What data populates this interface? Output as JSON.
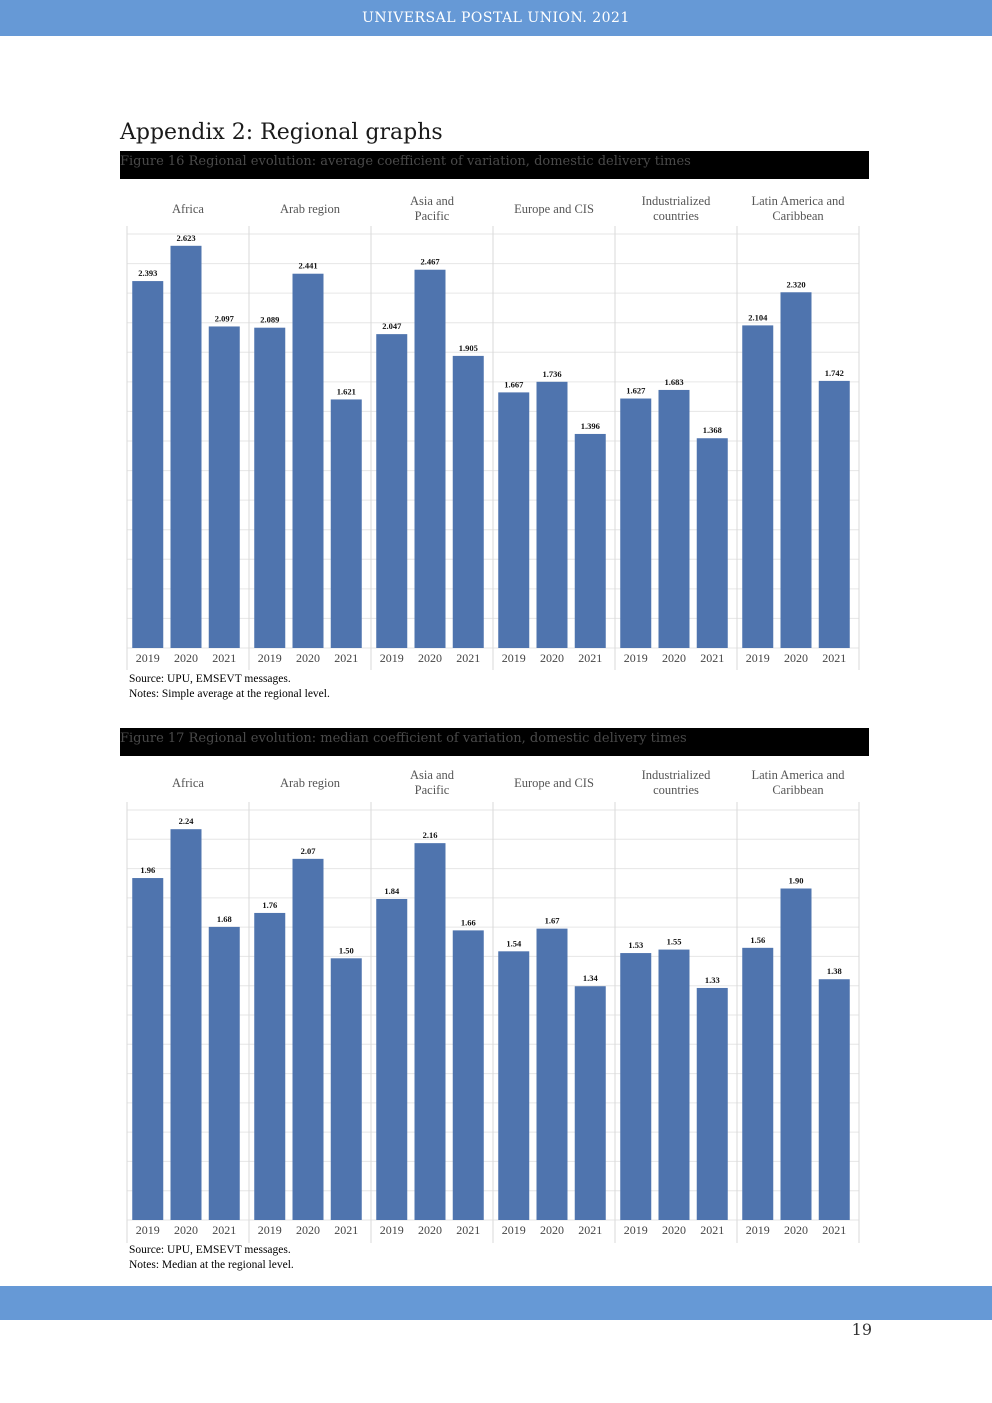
{
  "header": {
    "title": "UNIVERSAL POSTAL UNION. 2021"
  },
  "page": {
    "title": "Appendix 2: Regional graphs",
    "number": "19"
  },
  "figures": [
    {
      "caption": "Figure 16 Regional evolution: average coefficient of variation, domestic delivery times",
      "source": "Source: UPU, EMSEVT messages.",
      "notes": "Notes: Simple average at the regional level."
    },
    {
      "caption": "Figure 17 Regional evolution: median coefficient of variation, domestic delivery times",
      "source": "Source: UPU, EMSEVT messages.",
      "notes": "Notes: Median at the regional level."
    }
  ],
  "colors": {
    "bar": "#4f74ae",
    "band": "#6699d6",
    "grid": "#e6e6e6"
  },
  "chart_data": [
    {
      "type": "bar",
      "title": "Figure 16 Regional evolution: average coefficient of variation, domestic delivery times",
      "panels": [
        "Africa",
        "Arab region",
        "Asia and Pacific",
        "Europe and CIS",
        "Industrialized countries",
        "Latin America and Caribbean"
      ],
      "categories": [
        "2019",
        "2020",
        "2021"
      ],
      "values": [
        [
          2.393,
          2.623,
          2.097
        ],
        [
          2.089,
          2.441,
          1.621
        ],
        [
          2.047,
          2.467,
          1.905
        ],
        [
          1.667,
          1.736,
          1.396
        ],
        [
          1.627,
          1.683,
          1.368
        ],
        [
          2.104,
          2.32,
          1.742
        ]
      ],
      "labels": [
        [
          "2.393",
          "2.623",
          "2.097"
        ],
        [
          "2.089",
          "2.441",
          "1.621"
        ],
        [
          "2.047",
          "2.467",
          "1.905"
        ],
        [
          "1.667",
          "1.736",
          "1.396"
        ],
        [
          "1.627",
          "1.683",
          "1.368"
        ],
        [
          "2.104",
          "2.320",
          "1.742"
        ]
      ],
      "ylim": [
        0,
        2.7
      ],
      "xlabel": "",
      "ylabel": "",
      "grid": true
    },
    {
      "type": "bar",
      "title": "Figure 17 Regional evolution: median coefficient of variation, domestic delivery times",
      "panels": [
        "Africa",
        "Arab region",
        "Asia and Pacific",
        "Europe and CIS",
        "Industrialized countries",
        "Latin America and Caribbean"
      ],
      "categories": [
        "2019",
        "2020",
        "2021"
      ],
      "values": [
        [
          1.96,
          2.24,
          1.68
        ],
        [
          1.76,
          2.07,
          1.5
        ],
        [
          1.84,
          2.16,
          1.66
        ],
        [
          1.54,
          1.67,
          1.34
        ],
        [
          1.53,
          1.55,
          1.33
        ],
        [
          1.56,
          1.9,
          1.38
        ]
      ],
      "labels": [
        [
          "1.96",
          "2.24",
          "1.68"
        ],
        [
          "1.76",
          "2.07",
          "1.50"
        ],
        [
          "1.84",
          "2.16",
          "1.66"
        ],
        [
          "1.54",
          "1.67",
          "1.34"
        ],
        [
          "1.53",
          "1.55",
          "1.33"
        ],
        [
          "1.56",
          "1.90",
          "1.38"
        ]
      ],
      "ylim": [
        0,
        2.35
      ],
      "xlabel": "",
      "ylabel": "",
      "grid": true
    }
  ]
}
